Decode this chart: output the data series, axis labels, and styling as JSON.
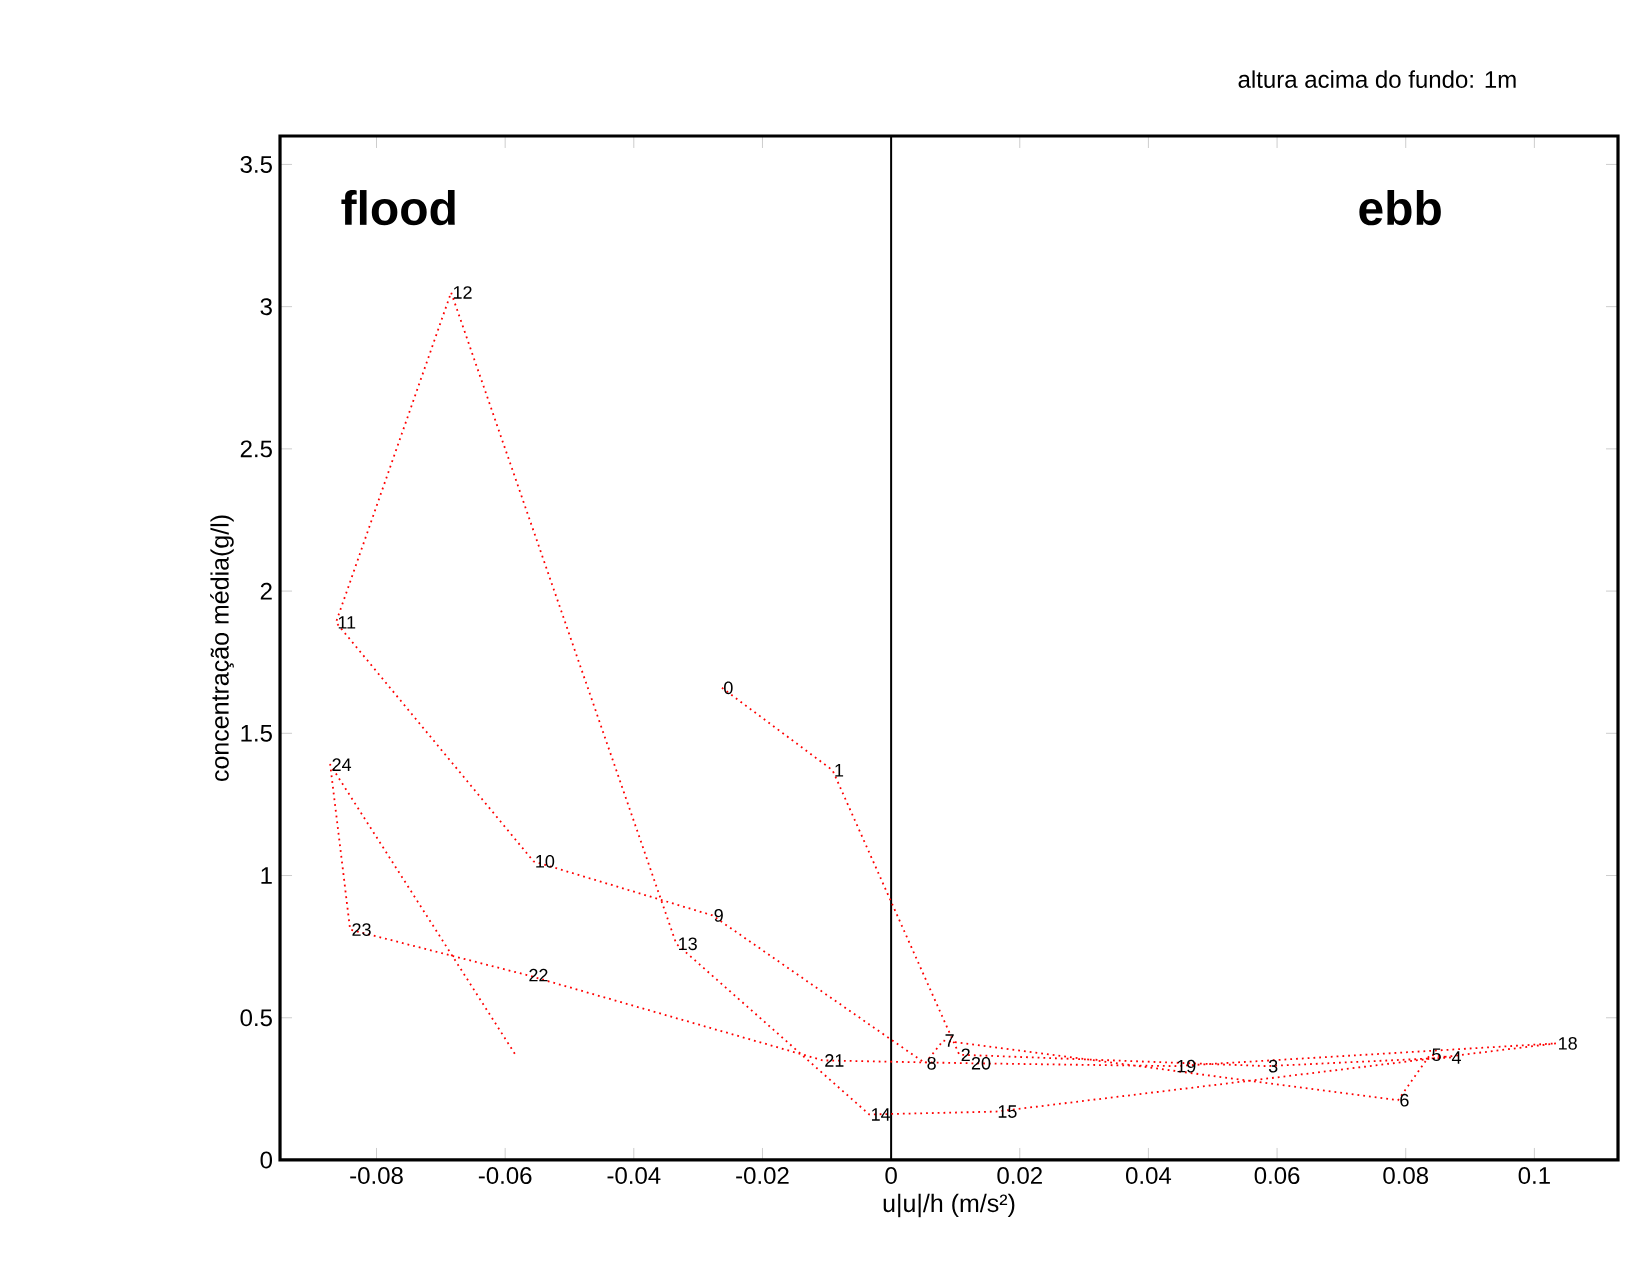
{
  "chart_data": {
    "type": "line",
    "title": "altura acima do fundo: 1m",
    "xlabel": "u|u|/h (m/s²)",
    "ylabel": "concentração média(g/l)",
    "x": [
      -0.0263,
      -0.0091,
      0.0106,
      0.0584,
      0.0869,
      0.0838,
      0.0788,
      0.0081,
      0.0053,
      -0.0278,
      -0.0556,
      -0.0863,
      -0.0684,
      -0.0334,
      -0.0034,
      0.0163,
      0.1034,
      0.0441,
      0.0122,
      -0.0106,
      -0.0566,
      -0.0841,
      -0.0872,
      -0.0584
    ],
    "series": [
      {
        "color": "#ff0000",
        "values": [
          1.66,
          1.37,
          0.37,
          0.33,
          0.36,
          0.37,
          0.21,
          0.42,
          0.34,
          0.86,
          1.05,
          1.89,
          3.05,
          0.76,
          0.16,
          0.17,
          0.41,
          0.33,
          0.34,
          0.35,
          0.65,
          0.81,
          1.39,
          0.37
        ]
      }
    ],
    "line_style": "dotted",
    "marker": "none",
    "xlim": [
      -0.095,
      0.113
    ],
    "ylim": [
      0,
      3.6
    ],
    "xticks": [
      -0.08,
      -0.06,
      -0.04,
      -0.02,
      0,
      0.02,
      0.04,
      0.06,
      0.08,
      0.1
    ],
    "yticks": [
      0,
      0.5,
      1,
      1.5,
      2,
      2.5,
      3,
      3.5
    ],
    "ref_lines": [
      {
        "axis": "x",
        "value": 0,
        "color": "#000000"
      }
    ],
    "annotations": [
      "flood",
      "ebb",
      {
        "text": "0",
        "x": -0.0263,
        "y": 1.66
      },
      {
        "text": "1",
        "x": -0.0091,
        "y": 1.37
      },
      {
        "text": "2",
        "x": 0.0106,
        "y": 0.37
      },
      {
        "text": "3",
        "x": 0.0584,
        "y": 0.33
      },
      {
        "text": "4",
        "x": 0.0869,
        "y": 0.36
      },
      {
        "text": "5",
        "x": 0.0838,
        "y": 0.37
      },
      {
        "text": "6",
        "x": 0.0788,
        "y": 0.21
      },
      {
        "text": "7",
        "x": 0.0081,
        "y": 0.42
      },
      {
        "text": "8",
        "x": 0.0053,
        "y": 0.34
      },
      {
        "text": "9",
        "x": -0.0278,
        "y": 0.86
      },
      {
        "text": "10",
        "x": -0.0556,
        "y": 1.05
      },
      {
        "text": "11",
        "x": -0.0863,
        "y": 1.89
      },
      {
        "text": "12",
        "x": -0.0684,
        "y": 3.05
      },
      {
        "text": "13",
        "x": -0.0334,
        "y": 0.76
      },
      {
        "text": "14",
        "x": -0.0034,
        "y": 0.16
      },
      {
        "text": "15",
        "x": 0.0163,
        "y": 0.17
      },
      {
        "text": "18",
        "x": 0.1034,
        "y": 0.41
      },
      {
        "text": "19",
        "x": 0.0441,
        "y": 0.33
      },
      {
        "text": "20",
        "x": 0.0122,
        "y": 0.34
      },
      {
        "text": "21",
        "x": -0.0106,
        "y": 0.35
      },
      {
        "text": "22",
        "x": -0.0566,
        "y": 0.65
      },
      {
        "text": "23",
        "x": -0.0841,
        "y": 0.81
      },
      {
        "text": "24",
        "x": -0.0872,
        "y": 1.39
      }
    ]
  }
}
